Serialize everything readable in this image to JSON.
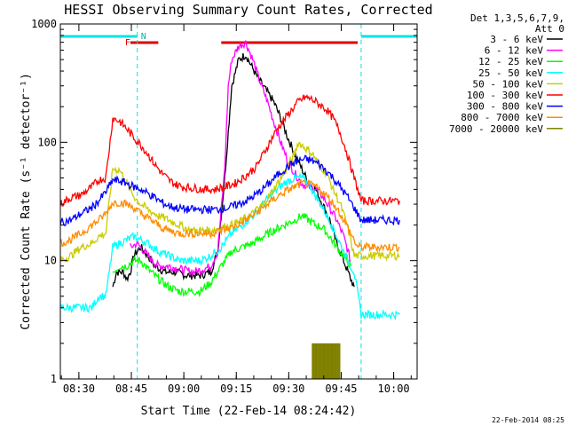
{
  "chart_data": {
    "type": "line",
    "title": "HESSI Observing Summary Count Rates, Corrected",
    "xlabel": "Start Time (22-Feb-14 08:24:42)",
    "ylabel": "Corrected Count Rate (s⁻¹ detector⁻¹)",
    "ylog": true,
    "ylim": [
      1,
      1000
    ],
    "xlim_minutes": [
      0,
      102
    ],
    "x_ticks": [
      {
        "minute": 5.3,
        "label": "08:30"
      },
      {
        "minute": 20.3,
        "label": "08:45"
      },
      {
        "minute": 35.3,
        "label": "09:00"
      },
      {
        "minute": 50.3,
        "label": "09:15"
      },
      {
        "minute": 65.3,
        "label": "09:30"
      },
      {
        "minute": 80.3,
        "label": "09:45"
      },
      {
        "minute": 95.3,
        "label": "10:00"
      }
    ],
    "y_ticks": [
      {
        "value": 1,
        "label": "1"
      },
      {
        "value": 10,
        "label": "10"
      },
      {
        "value": 100,
        "label": "100"
      },
      {
        "value": 1000,
        "label": "1000"
      }
    ],
    "legend_header": [
      "Det 1,3,5,6,7,9,",
      "Att 0"
    ],
    "legend_position": "right",
    "timestamp": "22-Feb-2014 08:25",
    "markers": {
      "night_bars_minutes": [
        [
          0,
          22
        ],
        [
          86,
          102
        ]
      ],
      "flare_bar_minutes": [
        [
          20,
          28
        ],
        [
          46,
          85
        ]
      ],
      "dashed_lines_minutes": [
        22,
        86,
        102
      ],
      "labels": {
        "F": "F",
        "N": "N"
      }
    },
    "series": [
      {
        "name": "3 - 6 keV",
        "color": "#000000",
        "points": [
          [
            15,
            6
          ],
          [
            16,
            8
          ],
          [
            18,
            8
          ],
          [
            19,
            7
          ],
          [
            20,
            8
          ],
          [
            21,
            11
          ],
          [
            22,
            12
          ],
          [
            23,
            13
          ],
          [
            25,
            11
          ],
          [
            27,
            9
          ],
          [
            30,
            8
          ],
          [
            33,
            8
          ],
          [
            36,
            7.5
          ],
          [
            40,
            7.5
          ],
          [
            43,
            8
          ],
          [
            45,
            12
          ],
          [
            47,
            50
          ],
          [
            49,
            300
          ],
          [
            51,
            500
          ],
          [
            53,
            550
          ],
          [
            55,
            420
          ],
          [
            57,
            330
          ],
          [
            59,
            270
          ],
          [
            61,
            220
          ],
          [
            63,
            160
          ],
          [
            65,
            110
          ],
          [
            67,
            80
          ],
          [
            69,
            60
          ],
          [
            71,
            45
          ],
          [
            73,
            40
          ],
          [
            75,
            30
          ],
          [
            77,
            22
          ],
          [
            79,
            14
          ],
          [
            81,
            10
          ],
          [
            83,
            7
          ],
          [
            84,
            6
          ]
        ]
      },
      {
        "name": "6 - 12 keV",
        "color": "#ff00ff",
        "points": [
          [
            20,
            13
          ],
          [
            22,
            14
          ],
          [
            25,
            11
          ],
          [
            28,
            9
          ],
          [
            31,
            9
          ],
          [
            34,
            8.5
          ],
          [
            38,
            8
          ],
          [
            41,
            8.5
          ],
          [
            43,
            9
          ],
          [
            45,
            12
          ],
          [
            47,
            60
          ],
          [
            48,
            300
          ],
          [
            49,
            500
          ],
          [
            51,
            650
          ],
          [
            53,
            700
          ],
          [
            55,
            500
          ],
          [
            57,
            330
          ],
          [
            59,
            230
          ],
          [
            61,
            150
          ],
          [
            63,
            100
          ],
          [
            65,
            70
          ],
          [
            67,
            55
          ],
          [
            69,
            45
          ],
          [
            71,
            42
          ],
          [
            73,
            40
          ],
          [
            75,
            35
          ],
          [
            77,
            28
          ],
          [
            79,
            22
          ],
          [
            81,
            16
          ],
          [
            83,
            10
          ]
        ]
      },
      {
        "name": "12 - 25 keV",
        "color": "#00ff00",
        "points": [
          [
            15,
            8
          ],
          [
            17,
            9
          ],
          [
            19,
            9
          ],
          [
            21,
            10
          ],
          [
            23,
            10
          ],
          [
            25,
            8.5
          ],
          [
            28,
            7
          ],
          [
            31,
            6
          ],
          [
            34,
            5.5
          ],
          [
            37,
            5.5
          ],
          [
            40,
            5.5
          ],
          [
            43,
            6.5
          ],
          [
            46,
            9
          ],
          [
            49,
            12
          ],
          [
            52,
            13
          ],
          [
            55,
            14
          ],
          [
            58,
            16
          ],
          [
            61,
            18
          ],
          [
            64,
            20
          ],
          [
            67,
            22
          ],
          [
            69,
            24
          ],
          [
            71,
            22
          ],
          [
            73,
            20
          ],
          [
            75,
            19
          ],
          [
            77,
            16
          ],
          [
            79,
            13
          ],
          [
            81,
            11
          ],
          [
            83,
            9
          ]
        ]
      },
      {
        "name": "25 - 50 keV",
        "color": "#00ffff",
        "points": [
          [
            0,
            4
          ],
          [
            3,
            4
          ],
          [
            6,
            4
          ],
          [
            9,
            4
          ],
          [
            11,
            5
          ],
          [
            13,
            5
          ],
          [
            15,
            13
          ],
          [
            17,
            14
          ],
          [
            19,
            15
          ],
          [
            21,
            16
          ],
          [
            23,
            15
          ],
          [
            25,
            14
          ],
          [
            28,
            12
          ],
          [
            31,
            11
          ],
          [
            34,
            10
          ],
          [
            37,
            10
          ],
          [
            40,
            10
          ],
          [
            43,
            11
          ],
          [
            46,
            13
          ],
          [
            49,
            17
          ],
          [
            52,
            20
          ],
          [
            55,
            24
          ],
          [
            58,
            30
          ],
          [
            61,
            38
          ],
          [
            64,
            45
          ],
          [
            67,
            50
          ],
          [
            69,
            50
          ],
          [
            71,
            45
          ],
          [
            73,
            35
          ],
          [
            75,
            28
          ],
          [
            77,
            22
          ],
          [
            79,
            16
          ],
          [
            81,
            12
          ],
          [
            83,
            9
          ],
          [
            84,
            8
          ],
          [
            86,
            3.5
          ],
          [
            89,
            3.5
          ],
          [
            92,
            3.5
          ],
          [
            95,
            3.5
          ],
          [
            97,
            3.5
          ]
        ]
      },
      {
        "name": "50 - 100 keV",
        "color": "#cccc00",
        "points": [
          [
            0,
            10
          ],
          [
            3,
            11
          ],
          [
            6,
            13
          ],
          [
            9,
            14
          ],
          [
            11,
            16
          ],
          [
            13,
            17
          ],
          [
            15,
            60
          ],
          [
            17,
            58
          ],
          [
            19,
            45
          ],
          [
            21,
            35
          ],
          [
            23,
            30
          ],
          [
            25,
            27
          ],
          [
            28,
            24
          ],
          [
            31,
            22
          ],
          [
            34,
            20
          ],
          [
            37,
            18
          ],
          [
            40,
            18
          ],
          [
            43,
            18
          ],
          [
            46,
            19
          ],
          [
            49,
            20
          ],
          [
            52,
            22
          ],
          [
            55,
            25
          ],
          [
            58,
            30
          ],
          [
            61,
            40
          ],
          [
            64,
            55
          ],
          [
            67,
            80
          ],
          [
            68,
            100
          ],
          [
            70,
            90
          ],
          [
            72,
            80
          ],
          [
            74,
            65
          ],
          [
            76,
            55
          ],
          [
            78,
            40
          ],
          [
            80,
            30
          ],
          [
            82,
            20
          ],
          [
            84,
            11
          ],
          [
            86,
            11
          ],
          [
            89,
            11
          ],
          [
            92,
            11
          ],
          [
            95,
            11
          ],
          [
            97,
            11
          ]
        ]
      },
      {
        "name": "100 - 300 keV",
        "color": "#ff0000",
        "points": [
          [
            0,
            30
          ],
          [
            3,
            34
          ],
          [
            6,
            36
          ],
          [
            9,
            42
          ],
          [
            11,
            48
          ],
          [
            13,
            50
          ],
          [
            15,
            160
          ],
          [
            17,
            150
          ],
          [
            19,
            130
          ],
          [
            21,
            110
          ],
          [
            23,
            95
          ],
          [
            25,
            80
          ],
          [
            27,
            65
          ],
          [
            29,
            55
          ],
          [
            31,
            48
          ],
          [
            33,
            44
          ],
          [
            35,
            42
          ],
          [
            38,
            41
          ],
          [
            41,
            40
          ],
          [
            44,
            40
          ],
          [
            47,
            42
          ],
          [
            50,
            45
          ],
          [
            53,
            52
          ],
          [
            56,
            62
          ],
          [
            59,
            90
          ],
          [
            62,
            130
          ],
          [
            65,
            170
          ],
          [
            68,
            220
          ],
          [
            70,
            240
          ],
          [
            72,
            230
          ],
          [
            74,
            210
          ],
          [
            76,
            190
          ],
          [
            78,
            160
          ],
          [
            80,
            120
          ],
          [
            82,
            80
          ],
          [
            84,
            50
          ],
          [
            86,
            32
          ],
          [
            89,
            32
          ],
          [
            92,
            32
          ],
          [
            95,
            32
          ],
          [
            97,
            32
          ]
        ]
      },
      {
        "name": "300 - 800 keV",
        "color": "#0000ff",
        "points": [
          [
            0,
            21
          ],
          [
            3,
            22
          ],
          [
            6,
            25
          ],
          [
            9,
            28
          ],
          [
            11,
            32
          ],
          [
            13,
            38
          ],
          [
            15,
            48
          ],
          [
            17,
            47
          ],
          [
            19,
            45
          ],
          [
            21,
            42
          ],
          [
            23,
            40
          ],
          [
            25,
            37
          ],
          [
            27,
            34
          ],
          [
            29,
            31
          ],
          [
            31,
            29
          ],
          [
            33,
            28
          ],
          [
            36,
            27
          ],
          [
            39,
            27
          ],
          [
            42,
            27
          ],
          [
            45,
            27
          ],
          [
            48,
            28
          ],
          [
            51,
            30
          ],
          [
            54,
            33
          ],
          [
            57,
            38
          ],
          [
            60,
            46
          ],
          [
            63,
            56
          ],
          [
            66,
            65
          ],
          [
            68,
            70
          ],
          [
            70,
            72
          ],
          [
            72,
            70
          ],
          [
            74,
            65
          ],
          [
            76,
            58
          ],
          [
            78,
            50
          ],
          [
            80,
            42
          ],
          [
            82,
            35
          ],
          [
            84,
            28
          ],
          [
            86,
            22
          ],
          [
            89,
            22
          ],
          [
            92,
            22
          ],
          [
            95,
            22
          ],
          [
            97,
            22
          ]
        ]
      },
      {
        "name": "800 - 7000 keV",
        "color": "#ff8c00",
        "points": [
          [
            0,
            14
          ],
          [
            3,
            15
          ],
          [
            6,
            17
          ],
          [
            9,
            20
          ],
          [
            11,
            22
          ],
          [
            13,
            25
          ],
          [
            15,
            31
          ],
          [
            17,
            31
          ],
          [
            19,
            30
          ],
          [
            21,
            28
          ],
          [
            23,
            25
          ],
          [
            25,
            23
          ],
          [
            27,
            21
          ],
          [
            29,
            19
          ],
          [
            31,
            18
          ],
          [
            34,
            17
          ],
          [
            37,
            17
          ],
          [
            40,
            17
          ],
          [
            43,
            17
          ],
          [
            46,
            18
          ],
          [
            49,
            19
          ],
          [
            52,
            21
          ],
          [
            55,
            24
          ],
          [
            58,
            28
          ],
          [
            61,
            33
          ],
          [
            64,
            38
          ],
          [
            67,
            42
          ],
          [
            69,
            45
          ],
          [
            71,
            44
          ],
          [
            73,
            42
          ],
          [
            75,
            38
          ],
          [
            77,
            33
          ],
          [
            79,
            28
          ],
          [
            81,
            22
          ],
          [
            83,
            17
          ],
          [
            85,
            13
          ],
          [
            87,
            13
          ],
          [
            90,
            13
          ],
          [
            93,
            13
          ],
          [
            97,
            13
          ]
        ]
      },
      {
        "name": "7000 - 20000 keV",
        "color": "#808000",
        "points": [
          [
            72,
            1
          ],
          [
            73,
            2
          ],
          [
            74,
            2
          ],
          [
            75,
            2
          ],
          [
            76,
            2
          ],
          [
            77,
            2
          ],
          [
            78,
            2
          ],
          [
            79,
            2
          ],
          [
            80,
            1
          ]
        ]
      }
    ]
  }
}
